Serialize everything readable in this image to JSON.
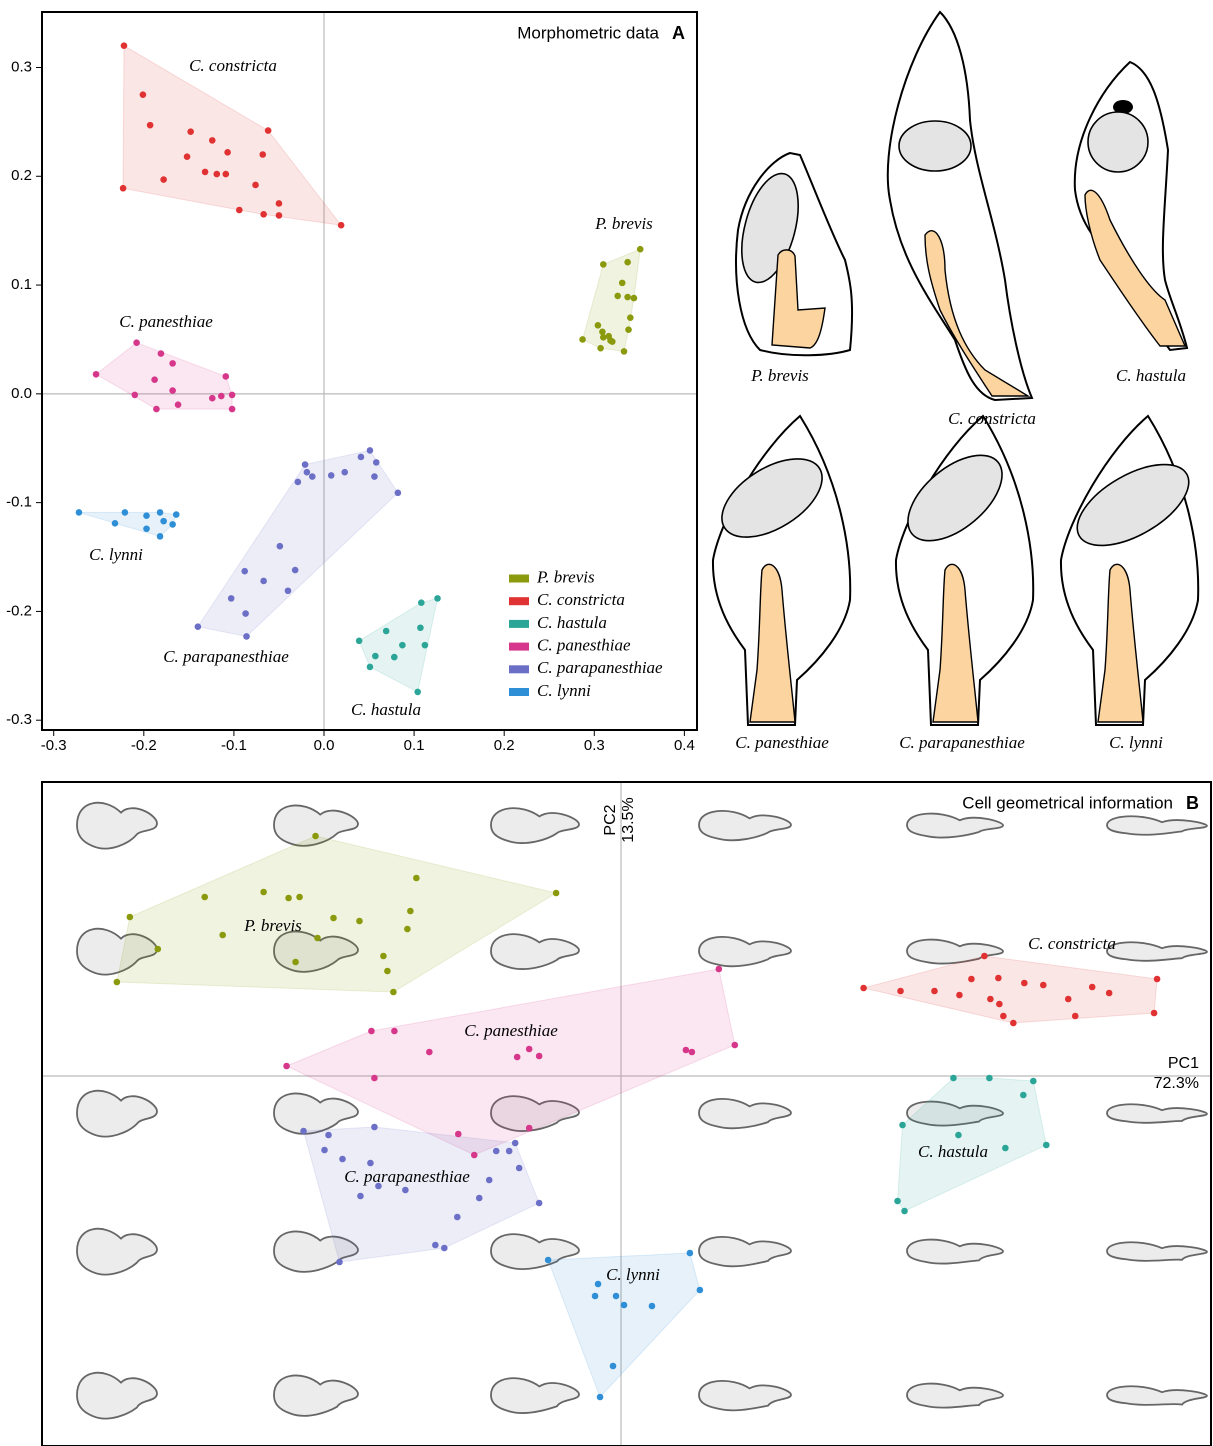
{
  "chart_data": [
    {
      "type": "scatter",
      "title": "Morphometric data",
      "panel": "A",
      "xlim": [
        -0.313,
        0.414
      ],
      "ylim": [
        -0.309,
        0.351
      ],
      "xticks": [
        -0.3,
        -0.2,
        -0.1,
        {
          "value": 0,
          "label": "0.0"
        },
        0.1,
        0.2,
        0.3,
        0.4
      ],
      "yticks": [
        -0.3,
        -0.2,
        -0.1,
        {
          "value": 0,
          "label": "0.0"
        },
        0.1,
        0.2,
        0.3
      ],
      "hull": true,
      "zero_lines": true,
      "legend": "lower right",
      "series": [
        {
          "name": "P. brevis",
          "color": "#8a9a0c",
          "x": [
            0.287,
            0.31,
            0.351,
            0.337,
            0.331,
            0.326,
            0.337,
            0.344,
            0.34,
            0.338,
            0.304,
            0.309,
            0.31,
            0.318,
            0.316,
            0.307,
            0.32,
            0.333
          ],
          "y": [
            0.05,
            0.119,
            0.133,
            0.121,
            0.102,
            0.09,
            0.089,
            0.088,
            0.07,
            0.059,
            0.063,
            0.057,
            0.052,
            0.049,
            0.053,
            0.042,
            0.048,
            0.039
          ]
        },
        {
          "name": "C. constricta",
          "color": "#e03232",
          "x": [
            -0.222,
            -0.201,
            -0.193,
            -0.223,
            -0.178,
            -0.152,
            -0.148,
            -0.132,
            -0.124,
            -0.119,
            -0.107,
            -0.109,
            -0.076,
            -0.068,
            -0.062,
            -0.094,
            -0.067,
            -0.05,
            -0.05,
            0.019
          ],
          "y": [
            0.32,
            0.275,
            0.247,
            0.189,
            0.197,
            0.218,
            0.241,
            0.204,
            0.233,
            0.202,
            0.222,
            0.202,
            0.192,
            0.22,
            0.242,
            0.169,
            0.165,
            0.175,
            0.164,
            0.155
          ]
        },
        {
          "name": "C. hastula",
          "color": "#2aa597",
          "x": [
            0.039,
            0.069,
            0.107,
            0.126,
            0.108,
            0.112,
            0.087,
            0.078,
            0.057,
            0.051,
            0.104
          ],
          "y": [
            -0.227,
            -0.218,
            -0.215,
            -0.188,
            -0.192,
            -0.231,
            -0.231,
            -0.242,
            -0.241,
            -0.251,
            -0.274
          ]
        },
        {
          "name": "C. panesthiae",
          "color": "#d6378a",
          "x": [
            -0.253,
            -0.208,
            -0.181,
            -0.168,
            -0.188,
            -0.168,
            -0.21,
            -0.186,
            -0.162,
            -0.124,
            -0.114,
            -0.109,
            -0.102,
            -0.102
          ],
          "y": [
            0.018,
            0.047,
            0.037,
            0.028,
            0.013,
            0.003,
            -0.001,
            -0.014,
            -0.01,
            -0.004,
            -0.002,
            0.016,
            -0.001,
            -0.014
          ]
        },
        {
          "name": "C. parapanesthiae",
          "color": "#6b6fc6",
          "x": [
            -0.14,
            -0.086,
            -0.087,
            -0.103,
            -0.088,
            -0.067,
            -0.049,
            -0.04,
            -0.032,
            -0.029,
            -0.021,
            -0.019,
            -0.013,
            0.008,
            0.023,
            0.041,
            0.051,
            0.056,
            0.058,
            0.082
          ],
          "y": [
            -0.214,
            -0.223,
            -0.202,
            -0.188,
            -0.163,
            -0.172,
            -0.14,
            -0.181,
            -0.162,
            -0.081,
            -0.065,
            -0.072,
            -0.076,
            -0.075,
            -0.072,
            -0.058,
            -0.052,
            -0.076,
            -0.063,
            -0.091
          ]
        },
        {
          "name": "C. lynni",
          "color": "#2f8fd6",
          "x": [
            -0.272,
            -0.232,
            -0.221,
            -0.197,
            -0.182,
            -0.164,
            -0.197,
            -0.178,
            -0.168,
            -0.182
          ],
          "y": [
            -0.109,
            -0.119,
            -0.109,
            -0.112,
            -0.109,
            -0.111,
            -0.124,
            -0.117,
            -0.12,
            -0.131
          ]
        }
      ]
    },
    {
      "type": "scatter",
      "title": "Cell geometrical information",
      "panel": "B",
      "xlabel": [
        "PC1",
        "72.3%"
      ],
      "ylabel": [
        "PC2",
        "13.5%"
      ],
      "xlim": [
        -5.8,
        5.91
      ],
      "ylim": [
        -3.7,
        2.94
      ],
      "hull": true,
      "zero_lines": true,
      "series": [
        {
          "name": "P. brevis",
          "color": "#8a9a0c",
          "x": [
            -3.06,
            -2.05,
            -0.65,
            -3.58,
            -3.33,
            -3.22,
            -4.17,
            -4.92,
            -2.88,
            -2.62,
            -3.99,
            -3.04,
            -2.11,
            -2.14,
            -4.64,
            -2.38,
            -3.26,
            -5.05,
            -2.34,
            -2.28
          ],
          "y": [
            2.4,
            1.98,
            1.83,
            1.84,
            1.78,
            1.79,
            1.79,
            1.59,
            1.58,
            1.55,
            1.41,
            1.38,
            1.65,
            1.47,
            1.27,
            1.2,
            1.14,
            0.94,
            1.05,
            0.84
          ]
        },
        {
          "name": "C. constricta",
          "color": "#e03232",
          "x": [
            2.43,
            3.64,
            2.8,
            3.14,
            3.39,
            3.51,
            3.78,
            4.04,
            3.7,
            3.79,
            4.23,
            4.48,
            4.72,
            4.89,
            5.37,
            5.34,
            4.55,
            3.83,
            3.93
          ],
          "y": [
            0.88,
            1.2,
            0.85,
            0.85,
            0.81,
            0.97,
            0.98,
            0.93,
            0.77,
            0.72,
            0.91,
            0.77,
            0.89,
            0.83,
            0.97,
            0.63,
            0.6,
            0.6,
            0.53
          ]
        },
        {
          "name": "C. hastula",
          "color": "#2aa597",
          "x": [
            3.33,
            3.69,
            4.13,
            4.03,
            2.82,
            3.38,
            4.26,
            3.85,
            2.77,
            2.84
          ],
          "y": [
            -0.02,
            -0.02,
            -0.05,
            -0.19,
            -0.49,
            -0.59,
            -0.69,
            -0.72,
            -1.25,
            -1.35
          ]
        },
        {
          "name": "C. panesthiae",
          "color": "#d6378a",
          "x": [
            0.98,
            1.14,
            0.65,
            0.71,
            -2.5,
            -2.27,
            -1.92,
            -0.92,
            -1.04,
            -0.82,
            -3.35,
            -2.47,
            -1.63,
            -0.92,
            -1.47
          ],
          "y": [
            1.07,
            0.31,
            0.26,
            0.24,
            0.45,
            0.45,
            0.24,
            0.27,
            0.19,
            0.2,
            0.1,
            -0.02,
            -0.58,
            -0.52,
            -0.79
          ]
        },
        {
          "name": "C. parapanesthiae",
          "color": "#6b6fc6",
          "x": [
            -3.18,
            -2.93,
            -2.47,
            -2.97,
            -2.79,
            -1.06,
            -1.25,
            -1.12,
            -2.51,
            -1.02,
            -2.43,
            -2.16,
            -2.61,
            -1.32,
            -1.42,
            -0.82,
            -1.64,
            -1.86,
            -1.77,
            -2.82
          ],
          "y": [
            -0.55,
            -0.59,
            -0.51,
            -0.74,
            -0.83,
            -0.67,
            -0.75,
            -0.75,
            -0.87,
            -0.92,
            -1.1,
            -1.14,
            -1.2,
            -1.04,
            -1.22,
            -1.27,
            -1.41,
            -1.69,
            -1.72,
            -1.86
          ]
        },
        {
          "name": "C. lynni",
          "color": "#2f8fd6",
          "x": [
            -0.73,
            0.69,
            0.79,
            -0.23,
            -0.26,
            -0.05,
            0.03,
            0.31,
            -0.08,
            -0.21
          ],
          "y": [
            -1.84,
            -1.77,
            -2.14,
            -2.08,
            -2.2,
            -2.2,
            -2.29,
            -2.3,
            -2.9,
            -3.21
          ]
        }
      ]
    }
  ],
  "illustrations": {
    "labels": [
      "P. brevis",
      "C. constricta",
      "C. hastula",
      "C. panesthiae",
      "C. parapanesthiae",
      "C. lynni"
    ]
  }
}
